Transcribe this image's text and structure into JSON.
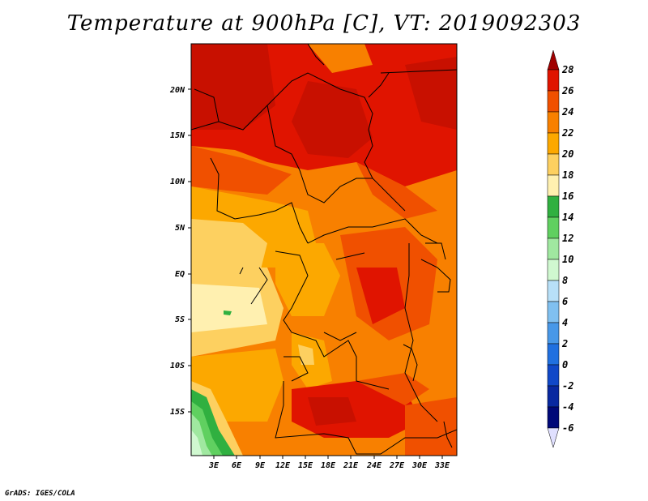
{
  "title": "Temperature at 900hPa [C], VT: 2019092303",
  "footer": "GrADS: IGES/COLA",
  "lat_labels": [
    "20N",
    "15N",
    "10N",
    "5N",
    "EQ",
    "5S",
    "10S",
    "15S"
  ],
  "lon_labels": [
    "3E",
    "6E",
    "9E",
    "12E",
    "15E",
    "18E",
    "21E",
    "24E",
    "27E",
    "30E",
    "33E"
  ],
  "colorbar": {
    "labels": [
      "28",
      "26",
      "24",
      "22",
      "20",
      "18",
      "16",
      "14",
      "12",
      "10",
      "8",
      "6",
      "4",
      "2",
      "0",
      "-2",
      "-4",
      "-6"
    ],
    "colors": [
      "#a00000",
      "#e01400",
      "#f05000",
      "#f88000",
      "#fca800",
      "#fdd060",
      "#fff0b0",
      "#30b040",
      "#60d060",
      "#a0e8a0",
      "#d0f8d0",
      "#b8e0f8",
      "#80c0f0",
      "#4898e8",
      "#2070e0",
      "#1048c8",
      "#0828a0",
      "#000878",
      "#e0e0ff"
    ]
  }
}
